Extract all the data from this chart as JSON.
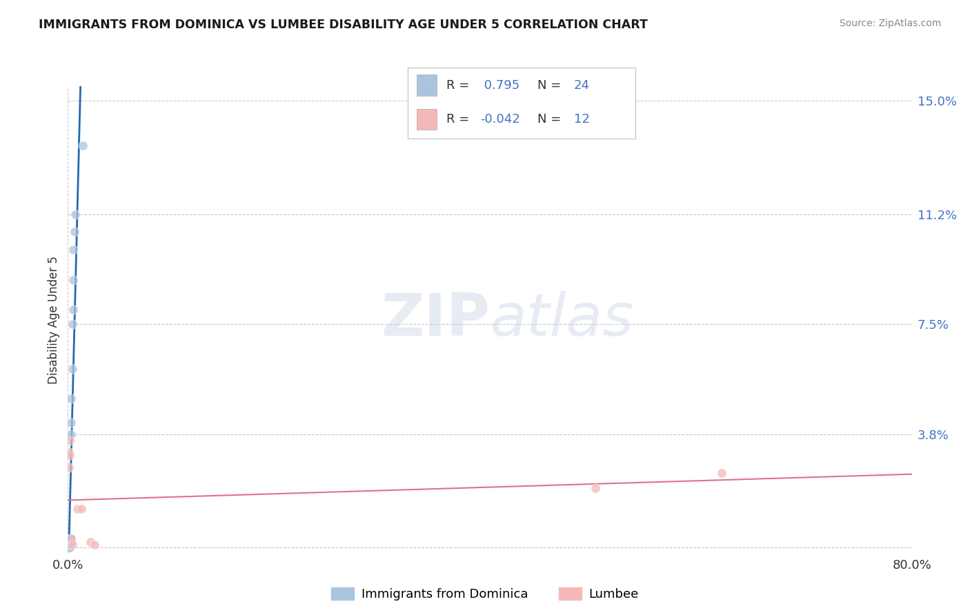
{
  "title": "IMMIGRANTS FROM DOMINICA VS LUMBEE DISABILITY AGE UNDER 5 CORRELATION CHART",
  "source": "Source: ZipAtlas.com",
  "ylabel": "Disability Age Under 5",
  "xlim": [
    0.0,
    0.8
  ],
  "ylim": [
    -0.002,
    0.155
  ],
  "ytick_vals": [
    0.0,
    0.038,
    0.075,
    0.112,
    0.15
  ],
  "ytick_labels": [
    "",
    "3.8%",
    "7.5%",
    "11.2%",
    "15.0%"
  ],
  "xtick_vals": [
    0.0,
    0.8
  ],
  "xtick_labels": [
    "0.0%",
    "80.0%"
  ],
  "watermark_text": "ZIPatlas",
  "blue_color": "#aac4e0",
  "pink_color": "#f4b8b8",
  "blue_line_color": "#2469b0",
  "pink_line_color": "#e07090",
  "dot_size": 90,
  "blue_scatter_x": [
    0.001,
    0.001,
    0.001,
    0.002,
    0.002,
    0.002,
    0.002,
    0.002,
    0.002,
    0.003,
    0.003,
    0.003,
    0.003,
    0.003,
    0.003,
    0.003,
    0.004,
    0.004,
    0.005,
    0.005,
    0.005,
    0.006,
    0.007,
    0.014
  ],
  "blue_scatter_y": [
    0.0,
    0.0,
    0.0,
    0.0,
    0.0,
    0.001,
    0.001,
    0.001,
    0.002,
    0.002,
    0.002,
    0.003,
    0.003,
    0.038,
    0.042,
    0.05,
    0.06,
    0.075,
    0.08,
    0.09,
    0.1,
    0.106,
    0.112,
    0.135
  ],
  "pink_scatter_x": [
    0.001,
    0.001,
    0.002,
    0.002,
    0.003,
    0.004,
    0.009,
    0.013,
    0.021,
    0.025,
    0.5,
    0.62
  ],
  "pink_scatter_y": [
    0.027,
    0.032,
    0.031,
    0.036,
    0.003,
    0.001,
    0.013,
    0.013,
    0.002,
    0.001,
    0.02,
    0.025
  ],
  "bg_color": "#ffffff",
  "grid_color": "#c8c8c8",
  "label_color_blue": "#4472c4",
  "label_color_dark": "#333333"
}
